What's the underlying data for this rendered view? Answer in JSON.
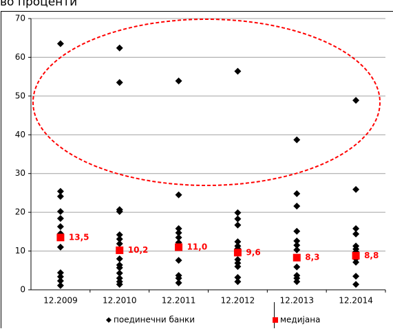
{
  "chart_data": {
    "type": "scatter",
    "title": "во проценти",
    "categories": [
      "12.2009",
      "12.2010",
      "12.2011",
      "12.2012",
      "12.2013",
      "12.2014"
    ],
    "series": [
      {
        "name": "поединечни банки",
        "color": "#000000",
        "marker": "diamond",
        "values": [
          [
            63.5,
            25.4,
            24.1,
            20.2,
            18.4,
            16.3,
            14.5,
            11.0,
            4.4,
            3.4,
            2.3,
            1.1
          ],
          [
            62.4,
            53.5,
            20.7,
            20.2,
            14.2,
            13.1,
            11.9,
            10.5,
            8.0,
            6.4,
            5.7,
            4.3,
            3.0,
            2.1,
            1.4
          ],
          [
            53.9,
            24.5,
            15.8,
            14.7,
            13.5,
            12.2,
            11.0,
            7.6,
            3.7,
            3.0,
            1.8
          ],
          [
            56.4,
            19.9,
            18.3,
            16.7,
            12.4,
            11.3,
            10.6,
            7.8,
            6.9,
            6.0,
            3.2,
            2.1
          ],
          [
            38.7,
            24.8,
            21.6,
            15.1,
            12.6,
            11.5,
            10.3,
            8.2,
            5.9,
            3.7,
            3.0,
            2.1
          ],
          [
            48.9,
            25.9,
            15.8,
            14.4,
            11.3,
            10.5,
            9.8,
            8.5,
            8.0,
            7.1,
            3.5,
            1.4
          ]
        ]
      },
      {
        "name": "медијана",
        "color": "#ff0000",
        "marker": "square",
        "values": [
          13.5,
          10.2,
          11.0,
          9.6,
          8.3,
          8.8
        ],
        "value_labels": [
          "13,5",
          "10,2",
          "11,0",
          "9,6",
          "8,3",
          "8,8"
        ]
      }
    ],
    "ylim": [
      0,
      70
    ],
    "yticks": [
      0,
      10,
      20,
      30,
      40,
      50,
      60,
      70
    ],
    "grid": true,
    "legend": "bottom"
  }
}
